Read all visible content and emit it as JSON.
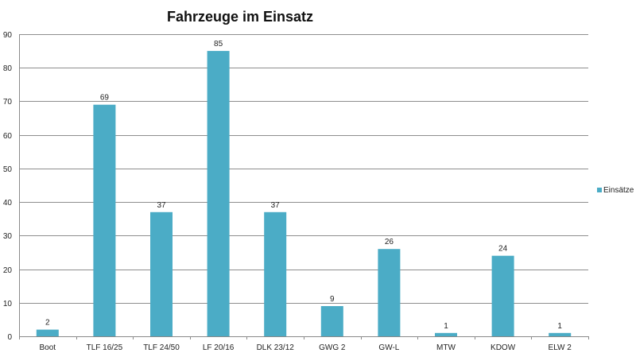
{
  "chart_data": {
    "type": "bar",
    "title": "Fahrzeuge im Einsatz",
    "xlabel": "",
    "ylabel": "",
    "categories": [
      "Boot",
      "TLF 16/25",
      "TLF 24/50",
      "LF 20/16",
      "DLK 23/12",
      "GWG 2",
      "GW-L",
      "MTW",
      "KDOW",
      "ELW 2"
    ],
    "series": [
      {
        "name": "Einsätze",
        "values": [
          2,
          69,
          37,
          85,
          37,
          9,
          26,
          1,
          24,
          1
        ],
        "color": "#4bacc6"
      }
    ],
    "ylim": [
      0,
      90
    ],
    "yticks": [
      0,
      10,
      20,
      30,
      40,
      50,
      60,
      70,
      80,
      90
    ],
    "grid": true,
    "data_labels": true,
    "legend_position": "right"
  }
}
